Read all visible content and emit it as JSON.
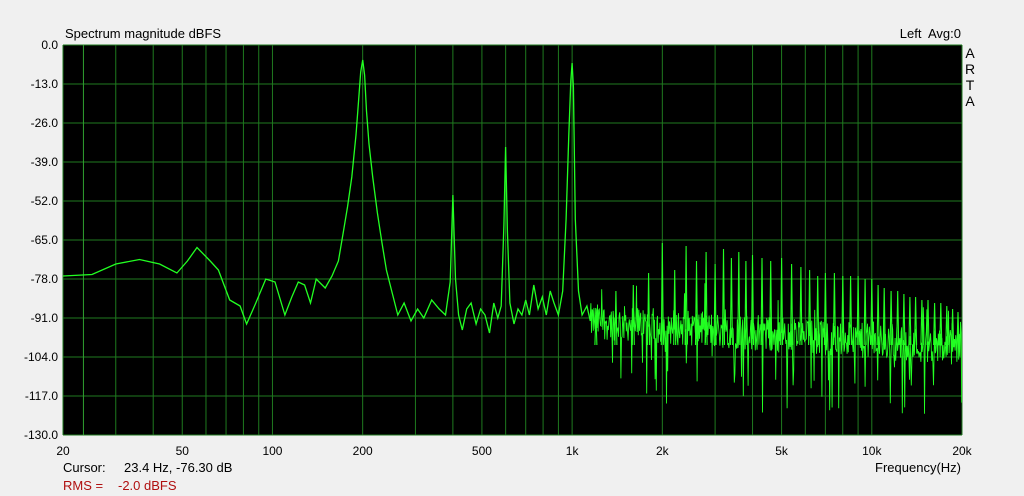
{
  "header": {
    "title": "Spectrum magnitude dBFS",
    "channel_status": "Left  Avg:0",
    "brand": [
      "A",
      "R",
      "T",
      "A"
    ]
  },
  "footer": {
    "cursor_label": "Cursor:",
    "cursor_value": "23.4 Hz, -76.30 dB",
    "rms_label": "RMS =",
    "rms_value": "-2.0 dBFS",
    "xlabel": "Frequency(Hz)"
  },
  "colors": {
    "plot_bg": "#000000",
    "grid": "#1f7a1f",
    "trace": "#22ff22",
    "rms": "#b01010"
  },
  "chart_data": {
    "type": "line",
    "title": "Spectrum magnitude dBFS",
    "xlabel": "Frequency(Hz)",
    "ylabel": "",
    "x_scale": "log",
    "xlim": [
      20,
      20000
    ],
    "ylim": [
      -130,
      0
    ],
    "grid": true,
    "y_ticks": [
      0,
      -13,
      -26,
      -39,
      -52,
      -65,
      -78,
      -91,
      -104,
      -117,
      -130
    ],
    "y_tick_labels": [
      "0.0",
      "-13.0",
      "-26.0",
      "-39.0",
      "-52.0",
      "-65.0",
      "-78.0",
      "-91.0",
      "-104.0",
      "-117.0",
      "-130.0"
    ],
    "x_ticks": [
      20,
      50,
      100,
      200,
      500,
      1000,
      2000,
      5000,
      10000,
      20000
    ],
    "x_tick_labels": [
      "20",
      "50",
      "100",
      "200",
      "500",
      "1k",
      "2k",
      "5k",
      "10k",
      "20k"
    ],
    "series": [
      {
        "x": [
          20,
          25,
          30,
          36,
          42,
          48,
          52,
          56,
          62,
          66,
          72,
          78,
          82,
          88,
          95,
          102,
          110,
          116,
          122,
          128,
          134,
          140,
          150,
          158,
          166,
          172,
          178,
          184,
          190,
          194,
          197,
          200,
          203,
          206,
          210,
          216,
          224,
          232,
          240,
          250,
          262,
          275,
          290,
          305,
          320,
          340,
          360,
          378,
          392,
          400,
          408,
          418,
          430,
          445,
          460,
          478,
          495,
          512,
          530,
          548,
          565,
          580,
          592,
          600,
          608,
          620,
          640,
          660,
          680,
          700,
          720,
          745,
          770,
          795,
          820,
          845,
          870,
          900,
          930,
          955,
          975,
          990,
          1000,
          1010,
          1025,
          1050,
          1080,
          1120,
          1150
        ],
        "y": [
          -77,
          -76.5,
          -73,
          -71.5,
          -73,
          -76,
          -72,
          -67.5,
          -72,
          -75,
          -85,
          -87,
          -93,
          -86,
          -78,
          -79,
          -90,
          -84,
          -79,
          -80,
          -86,
          -78,
          -81,
          -77,
          -72,
          -63,
          -54,
          -44,
          -30,
          -18,
          -9,
          -5,
          -10,
          -22,
          -33,
          -44,
          -56,
          -66,
          -75,
          -82,
          -90,
          -86,
          -92,
          -88,
          -91,
          -85,
          -88,
          -90,
          -79,
          -50,
          -78,
          -90,
          -95,
          -88,
          -86,
          -93,
          -88,
          -90,
          -96,
          -86,
          -91,
          -87,
          -60,
          -34,
          -62,
          -86,
          -93,
          -88,
          -90,
          -85,
          -90,
          -80,
          -88,
          -84,
          -90,
          -82,
          -86,
          -90,
          -82,
          -58,
          -30,
          -12,
          -6,
          -14,
          -58,
          -82,
          -90,
          -87,
          -92
        ]
      }
    ]
  }
}
